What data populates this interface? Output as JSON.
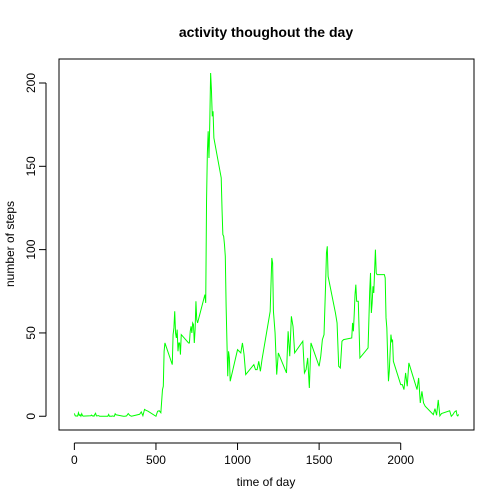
{
  "chart_data": {
    "type": "line",
    "title": "activity thoughout the day",
    "xlabel": "time of day",
    "ylabel": "number of steps",
    "x": [
      0,
      5,
      10,
      15,
      20,
      25,
      30,
      35,
      40,
      45,
      50,
      55,
      100,
      105,
      110,
      115,
      120,
      125,
      130,
      135,
      140,
      145,
      150,
      155,
      200,
      205,
      210,
      215,
      220,
      225,
      230,
      235,
      240,
      245,
      250,
      255,
      300,
      310,
      320,
      330,
      340,
      350,
      400,
      410,
      420,
      430,
      440,
      450,
      500,
      510,
      520,
      530,
      540,
      545,
      550,
      555,
      600,
      605,
      610,
      615,
      620,
      625,
      630,
      635,
      640,
      645,
      650,
      655,
      700,
      705,
      710,
      715,
      720,
      725,
      730,
      735,
      740,
      745,
      750,
      755,
      800,
      805,
      810,
      815,
      820,
      825,
      830,
      835,
      840,
      845,
      850,
      855,
      900,
      905,
      910,
      915,
      920,
      925,
      930,
      935,
      940,
      945,
      950,
      955,
      1000,
      1010,
      1020,
      1030,
      1040,
      1050,
      1100,
      1110,
      1120,
      1130,
      1140,
      1150,
      1200,
      1210,
      1215,
      1220,
      1230,
      1240,
      1250,
      1300,
      1310,
      1320,
      1330,
      1340,
      1350,
      1400,
      1410,
      1420,
      1430,
      1440,
      1450,
      1500,
      1510,
      1520,
      1530,
      1540,
      1545,
      1550,
      1555,
      1600,
      1610,
      1620,
      1630,
      1640,
      1650,
      1700,
      1705,
      1710,
      1715,
      1720,
      1725,
      1730,
      1740,
      1750,
      1800,
      1805,
      1810,
      1815,
      1820,
      1825,
      1830,
      1835,
      1845,
      1850,
      1855,
      1900,
      1905,
      1910,
      1915,
      1920,
      1925,
      1930,
      1940,
      1945,
      1950,
      1955,
      2000,
      2010,
      2020,
      2030,
      2040,
      2050,
      2100,
      2110,
      2120,
      2130,
      2140,
      2150,
      2200,
      2210,
      2220,
      2230,
      2240,
      2250,
      2300,
      2310,
      2320,
      2330,
      2340,
      2345,
      2350,
      2355
    ],
    "series": [
      {
        "name": "steps",
        "color": "#00ff00",
        "values": [
          1.7,
          0.3,
          0.1,
          0.2,
          0.1,
          2.1,
          0.5,
          0.9,
          0,
          1.5,
          0.3,
          0.1,
          0.3,
          0.7,
          0.2,
          0.3,
          0,
          1.1,
          1.8,
          0.2,
          0.2,
          0.4,
          0.3,
          0,
          0,
          0,
          1.1,
          0,
          0,
          0.1,
          0,
          0.2,
          0,
          0,
          1.5,
          0.9,
          0,
          0,
          0.2,
          1.6,
          0.5,
          0,
          1.2,
          2.6,
          0.3,
          4.1,
          3.5,
          3.1,
          0,
          3,
          3.3,
          2.1,
          16,
          18,
          39,
          44,
          31,
          49,
          53,
          63,
          50,
          47,
          52,
          39,
          44,
          44,
          37,
          49,
          44,
          44,
          51,
          54,
          50,
          56,
          55,
          44,
          52,
          69,
          58,
          56,
          73,
          68,
          129,
          158,
          171,
          155,
          177,
          206,
          196,
          180,
          183,
          167,
          143,
          124,
          109,
          108,
          103,
          96,
          66,
          45,
          24,
          39,
          35,
          21,
          40,
          39,
          38,
          44,
          37,
          25,
          31,
          28,
          28,
          33,
          27,
          34,
          63,
          95,
          92,
          63,
          50,
          25,
          38,
          26,
          51,
          36,
          60,
          54,
          38,
          45,
          26,
          28,
          35,
          17,
          44,
          30,
          36,
          46,
          49,
          80,
          98,
          102,
          84,
          62,
          56,
          30,
          29,
          45,
          46,
          47,
          56,
          51,
          61,
          73,
          79,
          69,
          69,
          35,
          41,
          58,
          75,
          86,
          62,
          68,
          78,
          74,
          100,
          86,
          85,
          85,
          83,
          59,
          53,
          36,
          21,
          27,
          49,
          45,
          46,
          33,
          19,
          19,
          16,
          26,
          18,
          32,
          16,
          23,
          8,
          15,
          8,
          6,
          1,
          4.6,
          0.6,
          9.8,
          0.2,
          1.6,
          3.3,
          0,
          1,
          2.6,
          3.3,
          0.6,
          0.2,
          1.1
        ]
      }
    ],
    "xlim": [
      -94.2,
      2449.2
    ],
    "ylim": [
      -8.25,
      214.4
    ],
    "xticks": [
      0,
      500,
      1000,
      1500,
      2000
    ],
    "yticks": [
      0,
      50,
      100,
      150,
      200
    ]
  }
}
